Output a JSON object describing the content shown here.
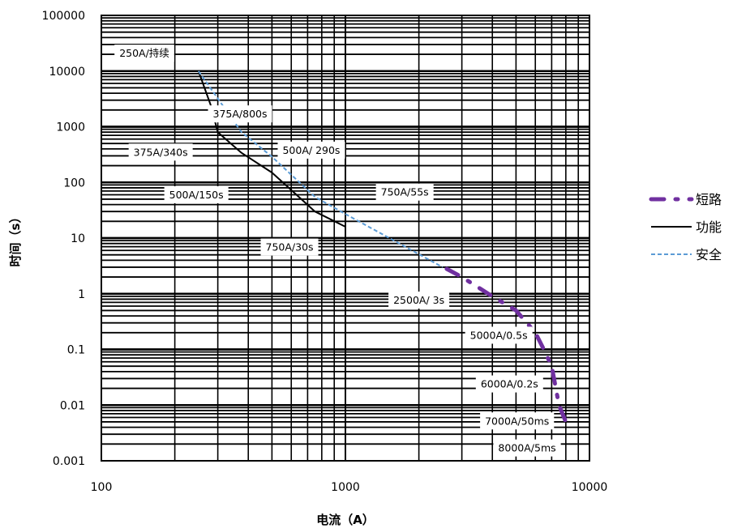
{
  "chart_data": {
    "type": "line",
    "x_scale": "log",
    "y_scale": "log",
    "xlim": [
      100,
      10000
    ],
    "ylim": [
      0.001,
      100000
    ],
    "xlabel": "电流（A）",
    "ylabel": "时间（s）",
    "x_ticks": [
      "100",
      "1000",
      "10000"
    ],
    "y_ticks": [
      "0.001",
      "0.01",
      "0.1",
      "1",
      "10",
      "100",
      "1000",
      "10000",
      "100000"
    ],
    "grid": true,
    "legend_position": "right",
    "series": [
      {
        "name": "短路",
        "color": "#7030a0",
        "style": "dash-dot",
        "points": [
          [
            2600,
            2.8
          ],
          [
            3000,
            2.0
          ],
          [
            4000,
            0.9
          ],
          [
            5000,
            0.5
          ],
          [
            6000,
            0.2
          ],
          [
            6500,
            0.1
          ],
          [
            7000,
            0.05
          ],
          [
            7500,
            0.01
          ],
          [
            8000,
            0.005
          ]
        ]
      },
      {
        "name": "功能",
        "color": "#000000",
        "style": "solid",
        "points": [
          [
            250,
            10000
          ],
          [
            280,
            2500
          ],
          [
            300,
            800
          ],
          [
            375,
            340
          ],
          [
            500,
            150
          ],
          [
            750,
            30
          ],
          [
            1000,
            16
          ]
        ]
      },
      {
        "name": "安全",
        "color": "#5b9bd5",
        "style": "dashed",
        "points": [
          [
            250,
            10000
          ],
          [
            375,
            800
          ],
          [
            500,
            290
          ],
          [
            750,
            55
          ],
          [
            1000,
            27
          ],
          [
            2500,
            3
          ]
        ]
      }
    ],
    "annotations": [
      {
        "text": "250A/持续",
        "x": 150,
        "y": 21000
      },
      {
        "text": "375A/800s",
        "x": 370,
        "y": 1700
      },
      {
        "text": "375A/340s",
        "x": 175,
        "y": 350
      },
      {
        "text": "500A/ 290s",
        "x": 725,
        "y": 380
      },
      {
        "text": "500A/150s",
        "x": 245,
        "y": 60
      },
      {
        "text": "750A/55s",
        "x": 1750,
        "y": 67
      },
      {
        "text": "750A/30s",
        "x": 590,
        "y": 6.9
      },
      {
        "text": "2500A/ 3s",
        "x": 2000,
        "y": 0.77
      },
      {
        "text": "5000A/0.5s",
        "x": 4250,
        "y": 0.18
      },
      {
        "text": "6000A/0.2s",
        "x": 4700,
        "y": 0.024
      },
      {
        "text": "7000A/50ms",
        "x": 5050,
        "y": 0.0052
      },
      {
        "text": "8000A/5ms",
        "x": 5550,
        "y": 0.0017
      }
    ]
  }
}
